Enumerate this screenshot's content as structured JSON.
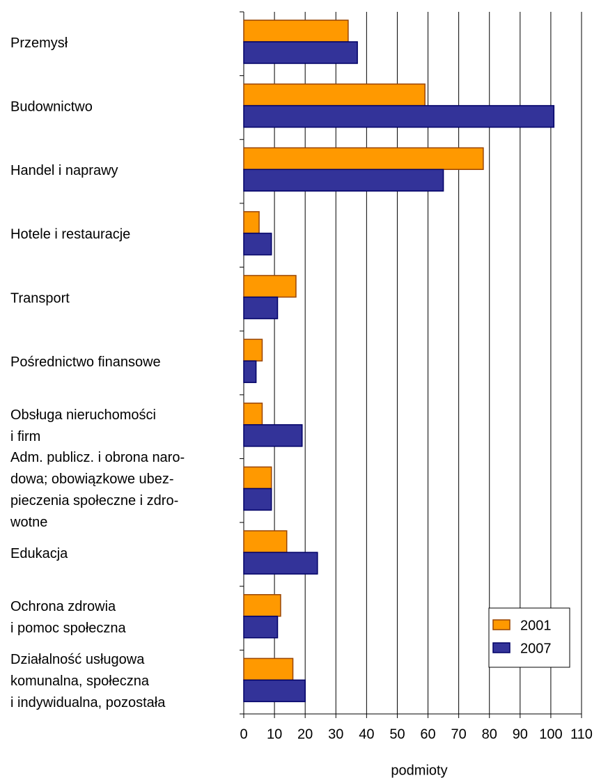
{
  "chart_data": {
    "type": "barh",
    "categories": [
      "Przemysł",
      "Budownictwo",
      "Handel i naprawy",
      "Hotele i restauracje",
      "Transport",
      "Pośrednictwo finansowe",
      "Obsługa nieruchomości\ni firm",
      "Adm. publicz. i obrona naro-\ndowa; obowiązkowe ubez-\npieczenia społeczne i zdro-\nwotne",
      "Edukacja",
      "Ochrona zdrowia\ni pomoc społeczna",
      "Działalność usługowa\nkomunalna, społeczna\ni indywidualna, pozostała"
    ],
    "series": [
      {
        "name": "2001",
        "color": "#ff9900",
        "values": [
          34,
          59,
          78,
          5,
          17,
          6,
          6,
          9,
          14,
          12,
          16
        ]
      },
      {
        "name": "2007",
        "color": "#333399",
        "values": [
          37,
          101,
          65,
          9,
          11,
          4,
          19,
          9,
          24,
          11,
          20
        ]
      }
    ],
    "xlabel": "podmioty",
    "xlim": [
      0,
      110
    ],
    "xticks": [
      0,
      10,
      20,
      30,
      40,
      50,
      60,
      70,
      80,
      90,
      100,
      110
    ],
    "grid": true,
    "legend": "lower right"
  }
}
